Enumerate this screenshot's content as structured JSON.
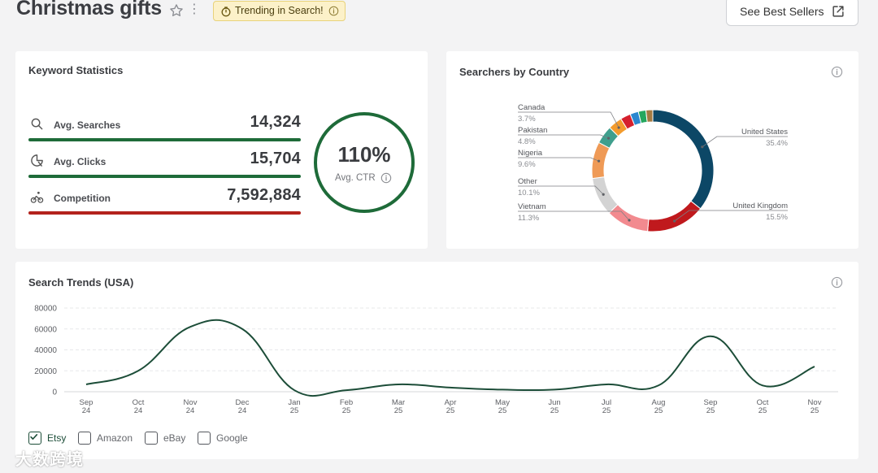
{
  "header": {
    "title": "Christmas gifts",
    "trend_badge": "Trending in Search!",
    "best_sellers_button": "See Best Sellers"
  },
  "keyword_stats": {
    "title": "Keyword Statistics",
    "rows": [
      {
        "label": "Avg. Searches",
        "value": "14,324",
        "color": "#1e6b39"
      },
      {
        "label": "Avg. Clicks",
        "value": "15,704",
        "color": "#1e6b39"
      },
      {
        "label": "Competition",
        "value": "7,592,884",
        "color": "#b3221c"
      }
    ],
    "ctr_value": "110%",
    "ctr_label": "Avg. CTR"
  },
  "country": {
    "title": "Searchers by Country",
    "chart_data": {
      "type": "pie",
      "title": "Searchers by Country",
      "labels": [
        "United States",
        "United Kingdom",
        "Vietnam",
        "Other",
        "Nigeria",
        "Pakistan",
        "Canada"
      ],
      "label_values": [
        "35.4%",
        "15.5%",
        "11.3%",
        "10.1%",
        "9.6%",
        "4.8%",
        "3.7%"
      ],
      "slices": [
        {
          "name": "United States",
          "value": 35.4,
          "color": "#0c4766"
        },
        {
          "name": "United Kingdom",
          "value": 15.5,
          "color": "#c0191d"
        },
        {
          "name": "Vietnam",
          "value": 11.3,
          "color": "#f28a8f"
        },
        {
          "name": "Other",
          "value": 10.1,
          "color": "#d3d3d3"
        },
        {
          "name": "Nigeria",
          "value": 9.6,
          "color": "#ef9a56"
        },
        {
          "name": "Pakistan",
          "value": 4.8,
          "color": "#3f9f8d"
        },
        {
          "name": "Canada",
          "value": 3.7,
          "color": "#f39b2d"
        },
        {
          "name": "",
          "value": 2.7,
          "color": "#d5202d"
        },
        {
          "name": "",
          "value": 2.2,
          "color": "#2b88d0"
        },
        {
          "name": "",
          "value": 2.0,
          "color": "#25a75e"
        },
        {
          "name": "",
          "value": 1.8,
          "color": "#a47a41"
        }
      ]
    }
  },
  "trends": {
    "title": "Search Trends (USA)",
    "chart_data": {
      "type": "line",
      "title": "Search Trends (USA)",
      "xlabel": "",
      "ylabel": "",
      "ylim": [
        0,
        80000
      ],
      "yticks": [
        "80000",
        "60000",
        "40000",
        "20000",
        "0"
      ],
      "categories": [
        [
          "Sep",
          "24"
        ],
        [
          "Oct",
          "24"
        ],
        [
          "Nov",
          "24"
        ],
        [
          "Dec",
          "24"
        ],
        [
          "Jan",
          "25"
        ],
        [
          "Feb",
          "25"
        ],
        [
          "Mar",
          "25"
        ],
        [
          "Apr",
          "25"
        ],
        [
          "May",
          "25"
        ],
        [
          "Jun",
          "25"
        ],
        [
          "Jul",
          "25"
        ],
        [
          "Aug",
          "25"
        ],
        [
          "Sep",
          "25"
        ],
        [
          "Oct",
          "25"
        ],
        [
          "Nov",
          "25"
        ]
      ],
      "series": [
        {
          "name": "Etsy",
          "color": "#1c4d38",
          "values": [
            7000,
            20000,
            62000,
            60000,
            1500,
            1500,
            7000,
            4000,
            2000,
            2000,
            7000,
            6000,
            53000,
            6000,
            24000
          ]
        }
      ]
    },
    "legend": [
      {
        "label": "Etsy",
        "checked": true
      },
      {
        "label": "Amazon",
        "checked": false
      },
      {
        "label": "eBay",
        "checked": false
      },
      {
        "label": "Google",
        "checked": false
      }
    ]
  },
  "watermark": "大数跨境"
}
